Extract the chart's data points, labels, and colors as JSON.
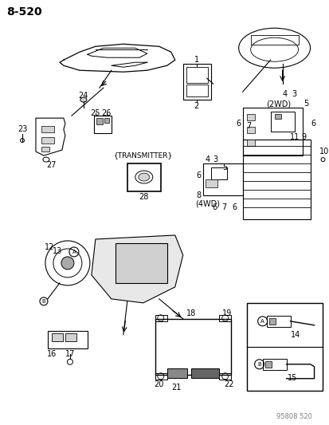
{
  "title": "8-520",
  "bg_color": "#ffffff",
  "border_color": "#000000",
  "line_color": "#000000",
  "text_color": "#000000",
  "watermark": "95808 520",
  "labels": {
    "transmitter": "{TRANSMITTER}",
    "2wd": "(2WD)",
    "4wd": "(4WD)",
    "circle_a": "A",
    "circle_b": "B"
  },
  "part_numbers": {
    "n1": "1",
    "n2": "2",
    "n3": "3",
    "n4": "4",
    "n5": "5",
    "n6": "6",
    "n7": "7",
    "n8": "8",
    "n9": "9",
    "n10": "10",
    "n11": "11",
    "n12": "12",
    "n13": "13",
    "n14": "14",
    "n15": "15",
    "n16": "16",
    "n17": "17",
    "n18": "18",
    "n19": "19",
    "n20": "20",
    "n21": "21",
    "n22": "22",
    "n23": "23",
    "n24": "24",
    "n25": "25",
    "n26": "26",
    "n27": "27",
    "n28": "28"
  }
}
